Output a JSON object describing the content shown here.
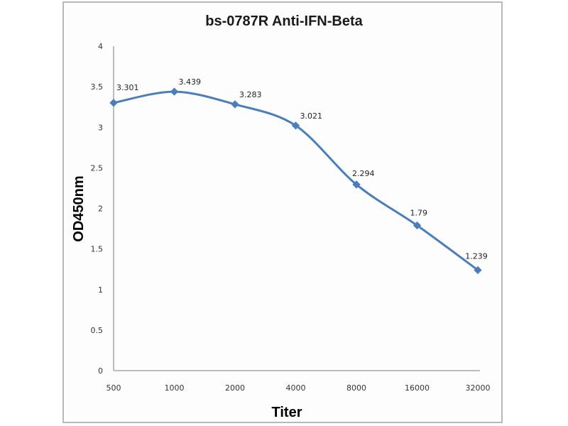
{
  "chart_data": {
    "type": "line",
    "title": "bs-0787R Anti-IFN-Beta",
    "xlabel": "Titer",
    "ylabel": "OD450nm",
    "categories": [
      "500",
      "1000",
      "2000",
      "4000",
      "8000",
      "16000",
      "32000"
    ],
    "series": [
      {
        "name": "OD450nm",
        "values": [
          3.301,
          3.439,
          3.283,
          3.021,
          2.294,
          1.79,
          1.239
        ],
        "labels": [
          "3.301",
          "3.439",
          "3.283",
          "3.021",
          "2.294",
          "1.79",
          "1.239"
        ],
        "color": "#4a7ebb"
      }
    ],
    "ylim": [
      0,
      4
    ],
    "yticks": [
      "0",
      "0.5",
      "1",
      "1.5",
      "2",
      "2.5",
      "3",
      "3.5",
      "4"
    ],
    "grid": false,
    "legend": "none",
    "smooth": true
  }
}
